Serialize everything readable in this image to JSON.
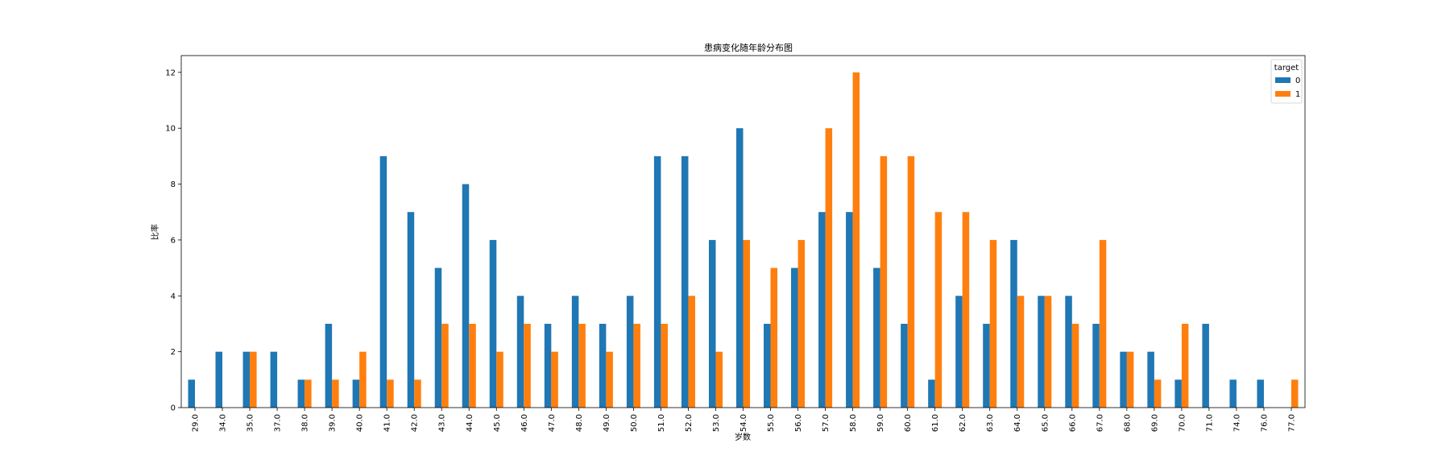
{
  "chart_data": {
    "type": "bar",
    "title": "患病变化随年龄分布图",
    "xlabel": "岁数",
    "ylabel": "比率",
    "categories": [
      "29.0",
      "34.0",
      "35.0",
      "37.0",
      "38.0",
      "39.0",
      "40.0",
      "41.0",
      "42.0",
      "43.0",
      "44.0",
      "45.0",
      "46.0",
      "47.0",
      "48.0",
      "49.0",
      "50.0",
      "51.0",
      "52.0",
      "53.0",
      "54.0",
      "55.0",
      "56.0",
      "57.0",
      "58.0",
      "59.0",
      "60.0",
      "61.0",
      "62.0",
      "63.0",
      "64.0",
      "65.0",
      "66.0",
      "67.0",
      "68.0",
      "69.0",
      "70.0",
      "71.0",
      "74.0",
      "76.0",
      "77.0"
    ],
    "series": [
      {
        "name": "0",
        "color": "#1f77b4",
        "values": [
          1,
          2,
          2,
          2,
          1,
          3,
          1,
          9,
          7,
          5,
          8,
          6,
          4,
          3,
          4,
          3,
          4,
          9,
          9,
          6,
          10,
          3,
          5,
          7,
          7,
          5,
          3,
          1,
          4,
          3,
          6,
          4,
          4,
          3,
          2,
          2,
          1,
          3,
          1,
          1,
          0
        ]
      },
      {
        "name": "1",
        "color": "#ff7f0e",
        "values": [
          0,
          0,
          2,
          0,
          1,
          1,
          2,
          1,
          1,
          3,
          3,
          2,
          3,
          2,
          3,
          2,
          3,
          3,
          4,
          2,
          6,
          5,
          6,
          10,
          12,
          9,
          9,
          7,
          7,
          6,
          4,
          4,
          3,
          6,
          2,
          1,
          3,
          0,
          0,
          0,
          1
        ]
      }
    ],
    "ylim": [
      0,
      12.6
    ],
    "yticks": [
      0,
      2,
      4,
      6,
      8,
      10,
      12
    ],
    "legend": {
      "title": "target",
      "placement": "top-right"
    },
    "grid": false
  }
}
